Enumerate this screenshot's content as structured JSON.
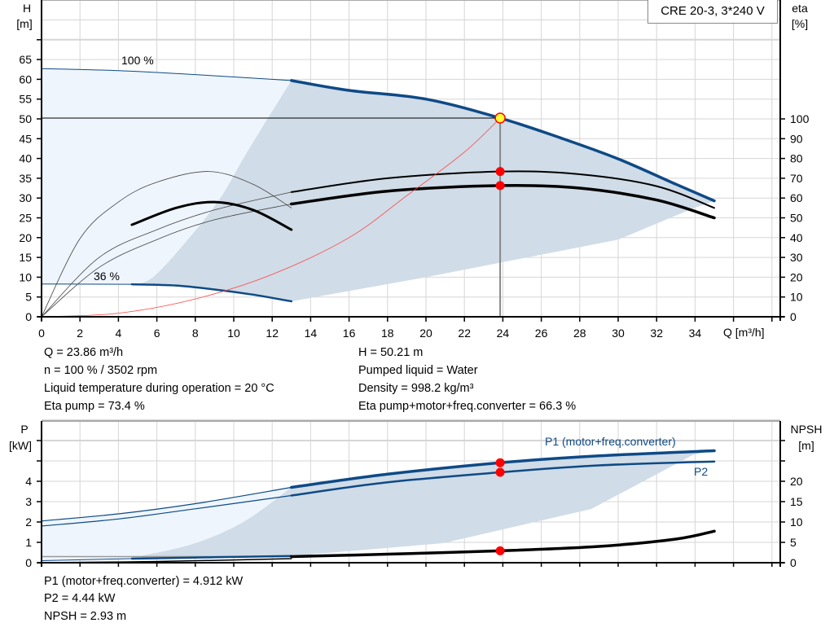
{
  "title": "CRE 20-3, 3*240 V",
  "colors": {
    "blue": "#0e4a86",
    "gray_region": "#d0dce7",
    "light_region": "#eef5fd",
    "system_curve": "#ff4444",
    "marker": "#ff0000",
    "op_point_fill": "#ffff33",
    "grid": "#d6d6d6"
  },
  "info_top_left": [
    "Q = 23.86 m³/h",
    "n = 100 % / 3502 rpm",
    "Liquid temperature during operation = 20 °C",
    "Eta pump = 73.4 %"
  ],
  "info_top_right": [
    "H = 50.21 m",
    "Pumped liquid = Water",
    "Density = 998.2 kg/m³",
    "Eta pump+motor+freq.converter = 66.3 %"
  ],
  "info_bottom": [
    "P1 (motor+freq.converter) = 4.912 kW",
    "P2 = 4.44 kW",
    "NPSH = 2.93 m"
  ],
  "chart_data": [
    {
      "type": "line",
      "name": "head-efficiency",
      "xlabel": "Q [m³/h]",
      "ylabel_left": [
        "H",
        "[m]"
      ],
      "ylabel_right": [
        "eta",
        "[%]"
      ],
      "x_ticks": [
        0,
        2,
        4,
        6,
        8,
        10,
        12,
        14,
        16,
        18,
        20,
        22,
        24,
        26,
        28,
        30,
        32,
        34
      ],
      "y_left_ticks": [
        0,
        5,
        10,
        15,
        20,
        25,
        30,
        35,
        40,
        45,
        50,
        55,
        60,
        65
      ],
      "y_right_ticks": [
        0,
        10,
        20,
        30,
        40,
        50,
        60,
        70,
        80,
        90,
        100
      ],
      "xlim": [
        0,
        38.4
      ],
      "ylim_left": [
        0,
        80
      ],
      "ylim_right": [
        0,
        160
      ],
      "grid": true,
      "annotations": {
        "speed_max": "100 %",
        "speed_min": "36 %"
      },
      "operating_point": {
        "Q": 23.86,
        "H": 50.21,
        "eta_pump": 73.4,
        "eta_total": 66.3
      },
      "series": {
        "H_100_thin": [
          [
            0,
            62.7
          ],
          [
            4,
            62.2
          ],
          [
            8,
            61.2
          ],
          [
            13,
            59.7
          ]
        ],
        "H_100": [
          [
            13,
            59.7
          ],
          [
            16,
            57.2
          ],
          [
            20,
            55
          ],
          [
            23.86,
            50.21
          ],
          [
            27,
            45.2
          ],
          [
            30,
            39.9
          ],
          [
            33,
            33.5
          ],
          [
            35,
            29.3
          ]
        ],
        "H_36_thin": [
          [
            0,
            8.3
          ],
          [
            4.7,
            8.2
          ]
        ],
        "H_36": [
          [
            4.7,
            8.2
          ],
          [
            7,
            7.9
          ],
          [
            9,
            6.9
          ],
          [
            11,
            5.6
          ],
          [
            13,
            3.9
          ]
        ],
        "eta_pump_100_thin": [
          [
            0,
            0
          ],
          [
            3,
            30
          ],
          [
            6,
            44
          ],
          [
            9,
            54
          ],
          [
            13,
            63
          ]
        ],
        "eta_pump_100": [
          [
            13,
            63
          ],
          [
            18,
            70
          ],
          [
            23.86,
            73.4
          ],
          [
            28,
            72
          ],
          [
            32,
            66
          ],
          [
            35,
            55
          ]
        ],
        "eta_total_100_thin": [
          [
            0,
            0
          ],
          [
            3,
            25
          ],
          [
            6,
            39
          ],
          [
            9,
            49
          ],
          [
            13,
            57
          ]
        ],
        "eta_total_100": [
          [
            13,
            57
          ],
          [
            18,
            63.5
          ],
          [
            23.86,
            66.3
          ],
          [
            28,
            65
          ],
          [
            32,
            59
          ],
          [
            35,
            50
          ]
        ],
        "eta_pump_36_thin": [
          [
            0,
            0
          ],
          [
            2,
            39.5
          ],
          [
            4,
            58
          ],
          [
            6,
            68
          ],
          [
            8.7,
            73.4
          ],
          [
            11,
            67
          ],
          [
            13,
            55
          ]
        ],
        "eta_total_36": [
          [
            4.7,
            46.5
          ],
          [
            7,
            55
          ],
          [
            9,
            58
          ],
          [
            11,
            54
          ],
          [
            13,
            44
          ]
        ],
        "system_curve": [
          [
            0,
            0
          ],
          [
            4,
            0.9
          ],
          [
            8,
            4.5
          ],
          [
            12,
            10.7
          ],
          [
            16,
            20
          ],
          [
            19,
            30.6
          ],
          [
            22,
            41.6
          ],
          [
            23.86,
            50.21
          ]
        ]
      }
    },
    {
      "type": "line",
      "name": "power-npsh",
      "ylabel_left": [
        "P",
        "[kW]"
      ],
      "ylabel_right": [
        "NPSH",
        "[m]"
      ],
      "y_left_ticks": [
        0,
        1,
        2,
        3,
        4
      ],
      "y_right_ticks": [
        0,
        5,
        10,
        15,
        20
      ],
      "ylim_left": [
        0,
        7
      ],
      "ylim_right": [
        0,
        35
      ],
      "grid": true,
      "legend": {
        "P1": "P1 (motor+freq.converter)",
        "P2": "P2"
      },
      "operating_point": {
        "Q": 23.86,
        "P1": 4.912,
        "P2": 4.44,
        "NPSH": 2.93
      },
      "series": {
        "P1_thin": [
          [
            0,
            2.05
          ],
          [
            4,
            2.4
          ],
          [
            8,
            2.9
          ],
          [
            13,
            3.7
          ]
        ],
        "P1": [
          [
            13,
            3.7
          ],
          [
            18,
            4.35
          ],
          [
            23.86,
            4.912
          ],
          [
            29,
            5.25
          ],
          [
            35,
            5.5
          ]
        ],
        "P2_thin": [
          [
            0,
            1.8
          ],
          [
            4,
            2.15
          ],
          [
            8,
            2.65
          ],
          [
            13,
            3.3
          ]
        ],
        "P2": [
          [
            13,
            3.3
          ],
          [
            18,
            3.95
          ],
          [
            23.86,
            4.44
          ],
          [
            29,
            4.78
          ],
          [
            35,
            4.97
          ]
        ],
        "P_36_thin": [
          [
            0,
            0.1
          ],
          [
            4.7,
            0.2
          ]
        ],
        "P_36": [
          [
            4.7,
            0.2
          ],
          [
            9,
            0.27
          ],
          [
            13,
            0.33
          ]
        ],
        "NPSH_thin": [
          [
            0,
            0
          ],
          [
            6,
            0.3
          ],
          [
            13,
            1.0
          ]
        ],
        "NPSH": [
          [
            13,
            1.5
          ],
          [
            18,
            2.1
          ],
          [
            23.86,
            2.93
          ],
          [
            29,
            4.0
          ],
          [
            33,
            5.8
          ],
          [
            35,
            7.75
          ]
        ]
      }
    }
  ]
}
